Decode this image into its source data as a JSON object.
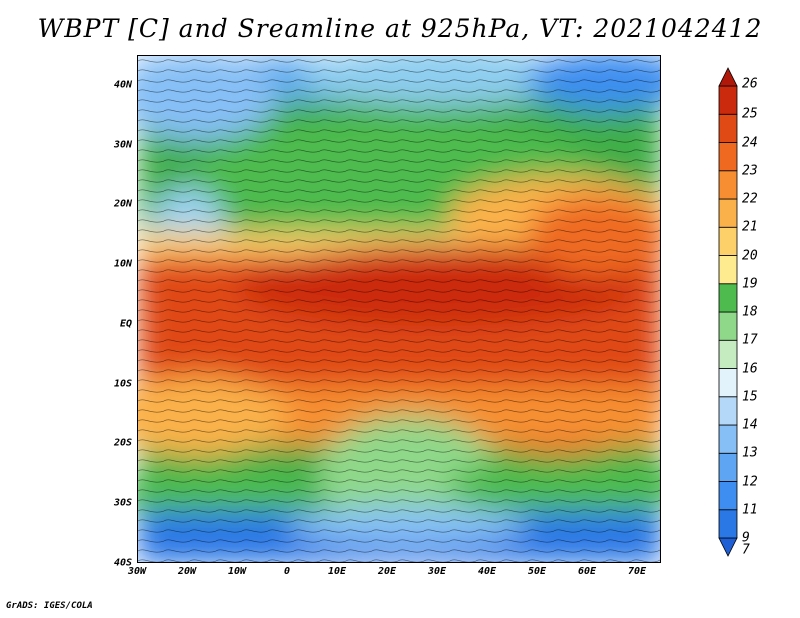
{
  "title": "WBPT [C] and Sreamline at 925hPa, VT: 2021042412",
  "credit": "GrADS: IGES/COLA",
  "map": {
    "lat_labels": [
      "40N",
      "30N",
      "20N",
      "10N",
      "EQ",
      "10S",
      "20S",
      "30S",
      "40S"
    ],
    "lon_labels": [
      "30W",
      "20W",
      "10W",
      "0",
      "10E",
      "20E",
      "30E",
      "40E",
      "50E",
      "60E",
      "70E"
    ],
    "lon_range": [
      -30,
      75
    ],
    "lat_range": [
      -40,
      45
    ]
  },
  "colorbar": {
    "labels": [
      "7",
      "9",
      "11",
      "12",
      "13",
      "14",
      "15",
      "16",
      "17",
      "18",
      "19",
      "20",
      "21",
      "22",
      "23",
      "24",
      "25",
      "26"
    ],
    "colors": [
      "#1f5fd6",
      "#2a78e6",
      "#3d8ef0",
      "#5ea6f4",
      "#86bff6",
      "#b3d8f8",
      "#e3f3fb",
      "#c5ebc0",
      "#8fd88a",
      "#4dbb4d",
      "#ffeb8f",
      "#fdd06a",
      "#fbb14a",
      "#f78f32",
      "#ef6a20",
      "#e04a14",
      "#cc2a0c",
      "#b0180a"
    ]
  }
}
